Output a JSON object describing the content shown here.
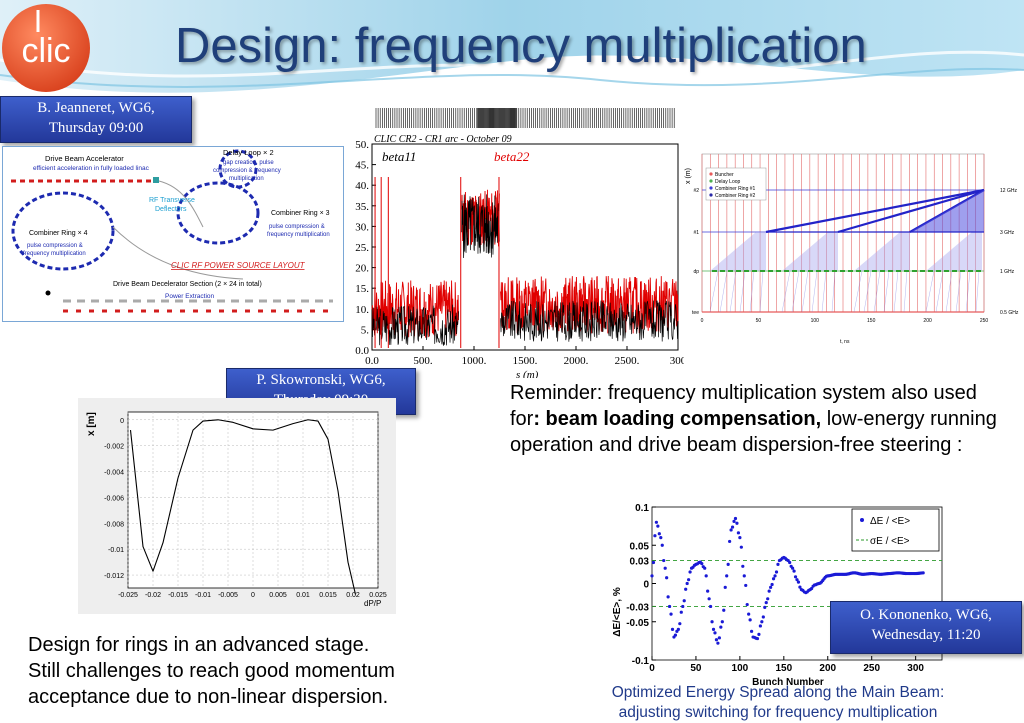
{
  "slide": {
    "title": "Design: frequency multiplication",
    "logo_text": "clic"
  },
  "callouts": {
    "jeanneret": {
      "line1": "B. Jeanneret, WG6,",
      "line2": "Thursday 09:00"
    },
    "skowronski": {
      "line1": "P. Skowronski, WG6,",
      "line2": "Thursday 09:30"
    },
    "kononenko": {
      "line1": "O. Kononenko, WG6,",
      "line2": "Wednesday, 11:20"
    }
  },
  "layout_diagram": {
    "drive_beam_accelerator": "Drive Beam Accelerator",
    "dba_sub": "efficient acceleration in fully loaded linac",
    "delay_loop": "Delay Loop × 2",
    "delay_loop_sub1": "gap creation, pulse",
    "delay_loop_sub2": "compression & frequency",
    "delay_loop_sub3": "multiplication",
    "rf_deflectors1": "RF Transverse",
    "rf_deflectors2": "Deflectors",
    "combiner_ring3": "Combiner Ring × 3",
    "cr3_sub1": "pulse compression &",
    "cr3_sub2": "frequency multiplication",
    "combiner_ring4": "Combiner Ring × 4",
    "cr4_sub1": "pulse compression &",
    "cr4_sub2": "frequency multiplication",
    "layout_label": "CLIC RF POWER SOURCE LAYOUT",
    "decelerator": "Drive Beam Decelerator Section (2 × 24 in total)",
    "power_extraction": "Power Extraction"
  },
  "beta_chart": {
    "title": "CLIC CR2 - CR1 arc - October 09",
    "label_beta11": "beta11",
    "label_beta22": "beta22",
    "yticks": [
      "0.0",
      "5.",
      "10.",
      "15.",
      "20.",
      "25.",
      "30.",
      "35.",
      "40.",
      "45.",
      "50."
    ],
    "xticks": [
      "0.0",
      "500.",
      "1000.",
      "1500.",
      "2000.",
      "2500.",
      "300"
    ],
    "xlabel": "s (m)",
    "chart_data": {
      "type": "line",
      "series": [
        {
          "name": "beta11",
          "color": "#000000"
        },
        {
          "name": "beta22",
          "color": "#e00000"
        }
      ],
      "xlim": [
        0,
        3000
      ],
      "ylim": [
        0,
        50
      ]
    }
  },
  "freq_chart": {
    "ylabel": "x (m)",
    "legend": [
      "Buncher",
      "Delay Loop",
      "Combiner Ring #1",
      "Combiner Ring #2"
    ],
    "legend_colors": [
      "#e85a5a",
      "#4caf50",
      "#3e3ed8",
      "#2a2aa8"
    ],
    "yticks": [
      "#2",
      "#1",
      "dp",
      "tee"
    ],
    "right_labels": [
      "12 GHz",
      "3 GHz",
      "1 GHz",
      "0.5 GHz"
    ],
    "xticks": [
      "0",
      "50",
      "100",
      "150",
      "200",
      "250"
    ],
    "xlabel": "t, ns"
  },
  "dispersion_chart": {
    "ylabel": "x [m]",
    "xlabel": "dP/P",
    "yticks": [
      "0",
      "-0.002",
      "-0.004",
      "-0.006",
      "-0.008",
      "-0.01",
      "-0.012"
    ],
    "xticks": [
      "-0.025",
      "-0.02",
      "-0.015",
      "-0.01",
      "-0.005",
      "0",
      "0.005",
      "0.01",
      "0.015",
      "0.02",
      "0.025"
    ],
    "chart_data": {
      "type": "line",
      "x": [
        -0.0245,
        -0.022,
        -0.02,
        -0.018,
        -0.015,
        -0.012,
        -0.01,
        -0.007,
        -0.004,
        0,
        0.004,
        0.008,
        0.011,
        0.013,
        0.015,
        0.017,
        0.019,
        0.0205
      ],
      "y": [
        -0.0008,
        -0.0098,
        -0.0117,
        -0.0095,
        -0.0045,
        -0.0008,
        -0.0001,
        0,
        -0.0002,
        -0.0007,
        -0.0008,
        -0.0003,
        0,
        -0.0001,
        -0.0015,
        -0.0055,
        -0.011,
        -0.0135
      ],
      "xlim": [
        -0.025,
        0.025
      ],
      "ylim": [
        -0.013,
        0.0006
      ]
    }
  },
  "reminder": {
    "part1": "Reminder: frequency multiplication system also used for",
    "bold": ": beam loading compensation,",
    "part2": " low-energy running operation and drive beam dispersion-free steering :"
  },
  "energy_chart": {
    "ylabel": "ΔE/<E>, %",
    "xlabel": "Bunch Number",
    "legend1": "ΔE / <E>",
    "legend2": "σE / <E>",
    "yticks": [
      "0.1",
      "0.05",
      "0.03",
      "0",
      "-0.03",
      "-0.05",
      "-0.1"
    ],
    "xticks": [
      "0",
      "50",
      "100",
      "150",
      "200",
      "250",
      "300"
    ],
    "chart_data": {
      "type": "scatter",
      "xlim": [
        0,
        330
      ],
      "ylim": [
        -0.1,
        0.1
      ],
      "series": [
        {
          "name": "ΔE / <E>",
          "color": "#1a1ad6",
          "x": [
            0,
            5,
            10,
            15,
            20,
            25,
            30,
            35,
            40,
            45,
            50,
            55,
            60,
            65,
            70,
            75,
            80,
            85,
            90,
            95,
            100,
            105,
            110,
            115,
            120,
            125,
            130,
            135,
            140,
            145,
            150,
            155,
            160,
            165,
            170,
            175,
            180,
            185,
            190,
            200,
            210,
            220,
            230,
            240,
            250,
            260,
            270,
            280,
            290,
            300,
            310
          ],
          "y": [
            0.01,
            0.08,
            0.06,
            0.02,
            -0.03,
            -0.07,
            -0.06,
            -0.03,
            0.0,
            0.02,
            0.025,
            0.028,
            0.02,
            -0.02,
            -0.06,
            -0.078,
            -0.05,
            0.01,
            0.07,
            0.085,
            0.06,
            0.01,
            -0.04,
            -0.07,
            -0.072,
            -0.05,
            -0.025,
            -0.005,
            0.01,
            0.03,
            0.034,
            0.03,
            0.02,
            0.005,
            -0.008,
            -0.012,
            -0.008,
            -0.002,
            0.0,
            0.01,
            0.012,
            0.012,
            0.014,
            0.012,
            0.013,
            0.012,
            0.013,
            0.014,
            0.013,
            0.013,
            0.014
          ]
        },
        {
          "name": "σE / <E>",
          "color": "#2a9a2a",
          "style": "dashed",
          "y": [
            0.03,
            -0.03
          ]
        }
      ]
    }
  },
  "bottom_left": {
    "line1": "Design for rings in an advanced stage.",
    "line2": "Still challenges to reach good momentum",
    "line3": "acceptance due to non-linear dispersion."
  },
  "caption": {
    "line1": "Optimized Energy Spread along the Main Beam:",
    "line2": "adjusting switching for frequency multiplication"
  }
}
